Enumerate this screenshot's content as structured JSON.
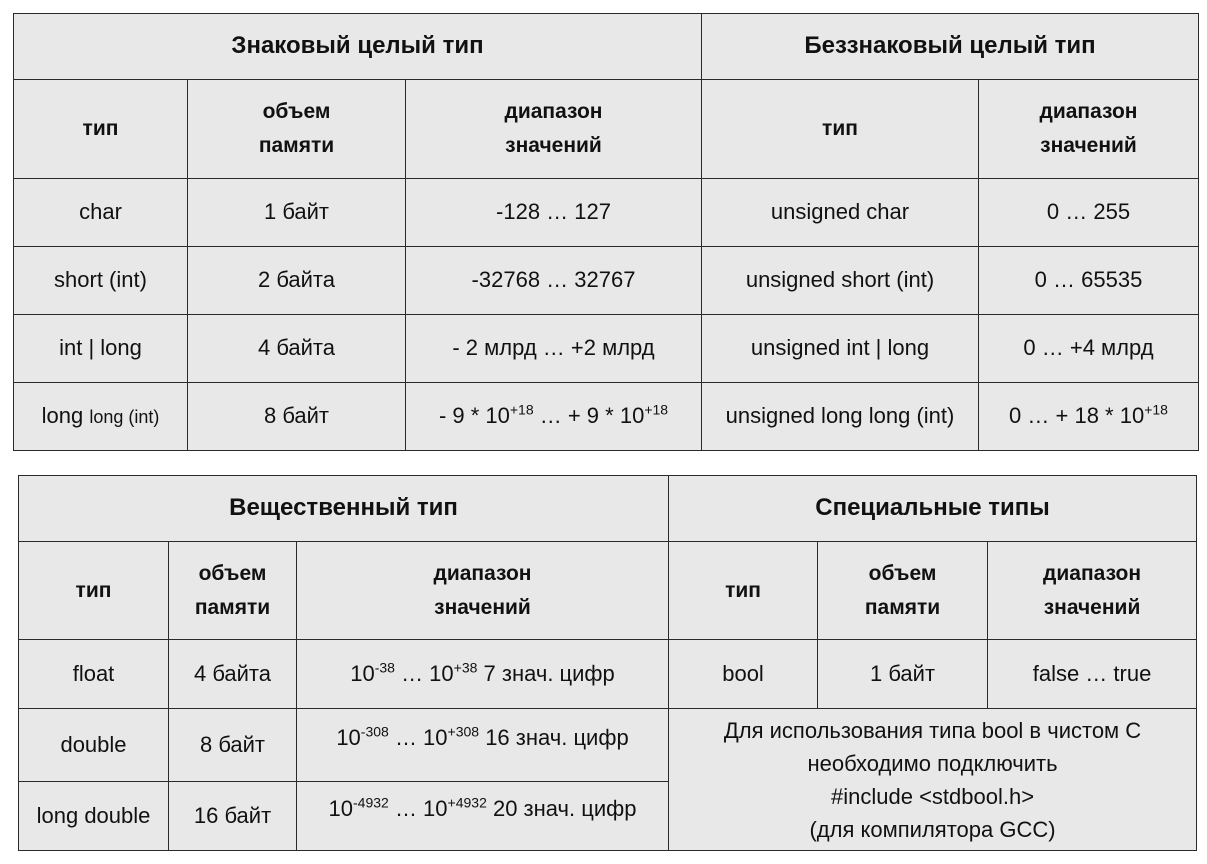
{
  "signed": {
    "title": "Знаковый целый тип",
    "headers": {
      "type": "тип",
      "size_l1": "объем",
      "size_l2": "памяти",
      "range_l1": "диапазон",
      "range_l2": "значений"
    },
    "rows": [
      {
        "type": "char",
        "size": "1 байт",
        "range": "-128 … 127"
      },
      {
        "type": "short (int)",
        "size": "2 байта",
        "range": "-32768 … 32767"
      },
      {
        "type": "int | long",
        "size": "4 байта",
        "range": "- 2 млрд … +2 млрд"
      },
      {
        "type_main": "long ",
        "type_small": "long (int)",
        "size": "8 байт",
        "range_a": "- 9 * 10",
        "range_a_exp": "+18",
        "range_b": " … + 9 * 10",
        "range_b_exp": "+18"
      }
    ]
  },
  "unsigned": {
    "title": "Беззнаковый целый тип",
    "headers": {
      "type": "тип",
      "range_l1": "диапазон",
      "range_l2": "значений"
    },
    "rows": [
      {
        "type": "unsigned char",
        "range": "0 … 255"
      },
      {
        "type": "unsigned short (int)",
        "range": "0 … 65535"
      },
      {
        "type": "unsigned int | long",
        "range": "0 … +4 млрд"
      },
      {
        "type": "unsigned long long (int)",
        "range_a": "0 … + 18 * 10",
        "range_a_exp": "+18"
      }
    ]
  },
  "real": {
    "title": "Вещественный тип",
    "headers": {
      "type": "тип",
      "size_l1": "объем",
      "size_l2": "памяти",
      "range_l1": "диапазон",
      "range_l2": "значений"
    },
    "rows": [
      {
        "type": "float",
        "size": "4 байта",
        "base1": "10",
        "exp1": "-38",
        "mid": " … 10",
        "exp2": "+38",
        "digits": " 7 знач. цифр"
      },
      {
        "type": "double",
        "size": "8 байт",
        "base1": "10",
        "exp1": "-308",
        "mid": " … 10",
        "exp2": "+308",
        "digits": " 16 знач. цифр"
      },
      {
        "type": "long double",
        "size": "16 байт",
        "base1": "10",
        "exp1": "-4932",
        "mid": " … 10",
        "exp2": "+4932",
        "digits": " 20 знач. цифр"
      }
    ]
  },
  "special": {
    "title": "Специальные типы",
    "headers": {
      "type": "тип",
      "size_l1": "объем",
      "size_l2": "памяти",
      "range_l1": "диапазон",
      "range_l2": "значений"
    },
    "rows": [
      {
        "type": "bool",
        "size": "1 байт",
        "range": "false … true"
      }
    ],
    "note": {
      "l1": "Для использования типа bool в чистом С",
      "l2": "необходимо подключить",
      "l3": "#include <stdbool.h>",
      "l4": "(для компилятора GCC)"
    }
  }
}
